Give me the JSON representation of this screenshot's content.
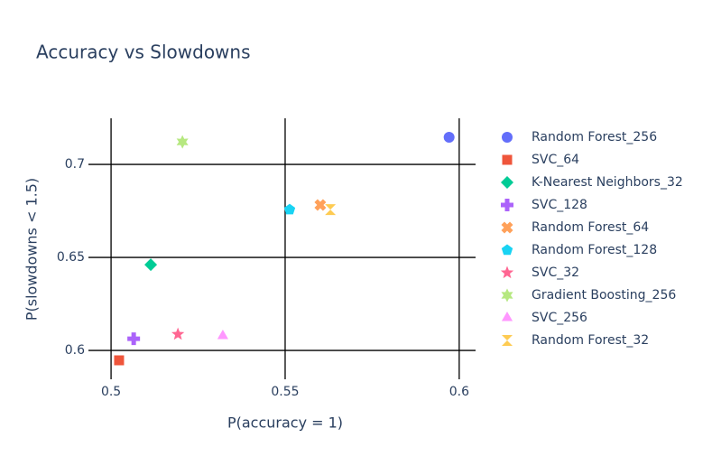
{
  "chart_data": {
    "type": "scatter",
    "title": "Accuracy vs Slowdowns",
    "xlabel": "P(accuracy = 1)",
    "ylabel": "P(slowdowns < 1.5)",
    "xlim": [
      0.4935,
      0.6047
    ],
    "ylim": [
      0.5845,
      0.7248
    ],
    "xticks": [
      0.5,
      0.55,
      0.6
    ],
    "yticks": [
      0.6,
      0.65,
      0.7
    ],
    "grid": true,
    "series": [
      {
        "name": "Random Forest_256",
        "color": "#636efa",
        "symbol": "circle",
        "x": [
          0.5971
        ],
        "values": [
          0.7146
        ]
      },
      {
        "name": "SVC_64",
        "color": "#EF553B",
        "symbol": "square",
        "x": [
          0.5023
        ],
        "values": [
          0.5947
        ]
      },
      {
        "name": "K-Nearest Neighbors_32",
        "color": "#00cc96",
        "symbol": "diamond",
        "x": [
          0.5114
        ],
        "values": [
          0.6461
        ]
      },
      {
        "name": "SVC_128",
        "color": "#ab63fa",
        "symbol": "cross",
        "x": [
          0.5065
        ],
        "values": [
          0.6063
        ]
      },
      {
        "name": "Random Forest_64",
        "color": "#FFA15A",
        "symbol": "x",
        "x": [
          0.5601
        ],
        "values": [
          0.6782
        ]
      },
      {
        "name": "Random Forest_128",
        "color": "#19d3f3",
        "symbol": "pentagon",
        "x": [
          0.5513
        ],
        "values": [
          0.6757
        ]
      },
      {
        "name": "SVC_32",
        "color": "#FF6692",
        "symbol": "star",
        "x": [
          0.5192
        ],
        "values": [
          0.6087
        ]
      },
      {
        "name": "Gradient Boosting_256",
        "color": "#B6E880",
        "symbol": "hexagram",
        "x": [
          0.5205
        ],
        "values": [
          0.7121
        ]
      },
      {
        "name": "SVC_256",
        "color": "#FF97FF",
        "symbol": "triangle-up",
        "x": [
          0.5321
        ],
        "values": [
          0.6078
        ]
      },
      {
        "name": "Random Forest_32",
        "color": "#FECB52",
        "symbol": "hourglass",
        "x": [
          0.563
        ],
        "values": [
          0.6757
        ]
      }
    ]
  }
}
